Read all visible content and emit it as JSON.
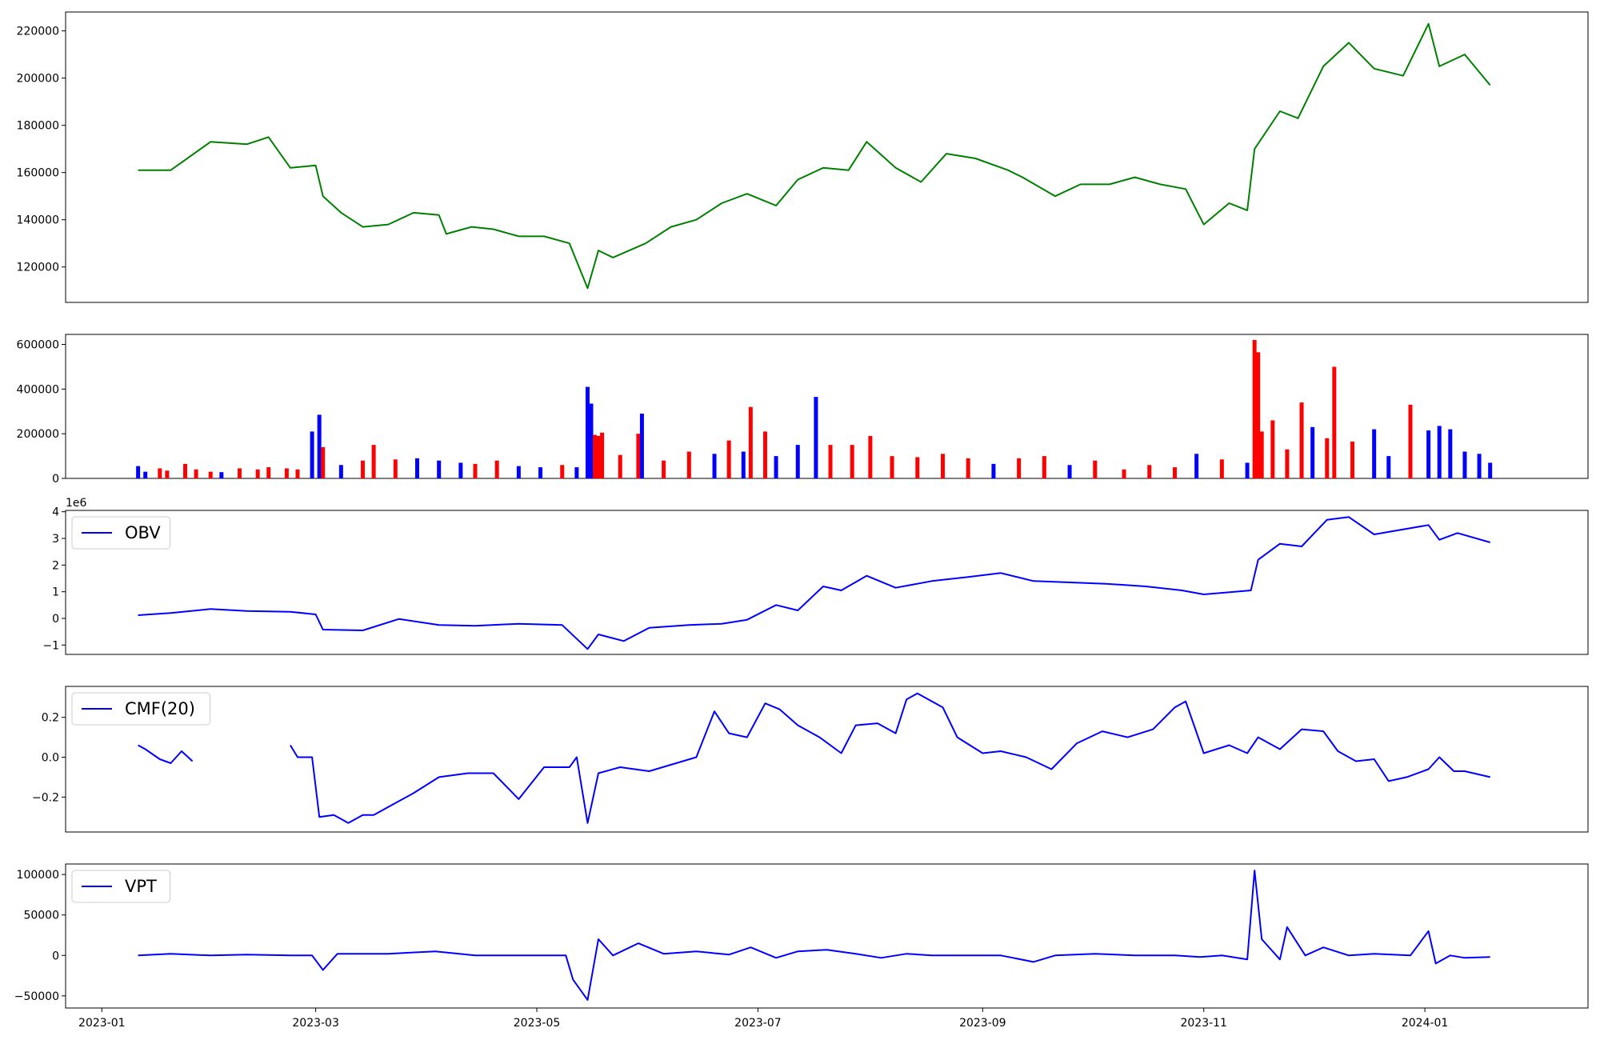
{
  "x_date_ticks": [
    "2023-01",
    "2023-03",
    "2023-05",
    "2023-07",
    "2023-09",
    "2023-11",
    "2024-01"
  ],
  "x_date_range": [
    "2022-12-22",
    "2024-02-15"
  ],
  "data_span": [
    "2023-01-11",
    "2024-01-19"
  ],
  "colors": {
    "price": "#008000",
    "indicator": "#0000ff",
    "vol_up": "#ff0000",
    "vol_down": "#0000ff",
    "axis": "#000000"
  },
  "chart_data": [
    {
      "id": "price",
      "type": "line",
      "ylim": [
        105000,
        228000
      ],
      "yticks": [
        "120000",
        "140000",
        "160000",
        "180000",
        "200000",
        "220000"
      ],
      "ytick_values": [
        120000,
        140000,
        160000,
        180000,
        200000,
        220000
      ],
      "series": [
        {
          "dates": [
            "2023-01-11",
            "2023-01-20",
            "2023-01-31",
            "2023-02-10",
            "2023-02-16",
            "2023-02-22",
            "2023-03-01",
            "2023-03-03",
            "2023-03-08",
            "2023-03-14",
            "2023-03-21",
            "2023-03-28",
            "2023-04-04",
            "2023-04-06",
            "2023-04-13",
            "2023-04-19",
            "2023-04-26",
            "2023-05-03",
            "2023-05-10",
            "2023-05-15",
            "2023-05-18",
            "2023-05-22",
            "2023-05-31",
            "2023-06-07",
            "2023-06-14",
            "2023-06-21",
            "2023-06-28",
            "2023-07-06",
            "2023-07-12",
            "2023-07-19",
            "2023-07-26",
            "2023-07-31",
            "2023-08-08",
            "2023-08-15",
            "2023-08-22",
            "2023-08-30",
            "2023-09-08",
            "2023-09-12",
            "2023-09-21",
            "2023-09-28",
            "2023-10-06",
            "2023-10-13",
            "2023-10-20",
            "2023-10-27",
            "2023-11-01",
            "2023-11-08",
            "2023-11-13",
            "2023-11-15",
            "2023-11-22",
            "2023-11-27",
            "2023-12-04",
            "2023-12-11",
            "2023-12-18",
            "2023-12-26",
            "2024-01-02",
            "2024-01-05",
            "2024-01-12",
            "2024-01-19"
          ],
          "values": [
            161000,
            161000,
            173000,
            172000,
            175000,
            162000,
            163000,
            150000,
            143000,
            137000,
            138000,
            143000,
            142000,
            134000,
            137000,
            136000,
            133000,
            133000,
            130000,
            111000,
            127000,
            124000,
            130000,
            137000,
            140000,
            147000,
            151000,
            146000,
            157000,
            162000,
            161000,
            173000,
            162000,
            156000,
            168000,
            166000,
            161000,
            158000,
            150000,
            155000,
            155000,
            158000,
            155000,
            153000,
            138000,
            147000,
            144000,
            170000,
            186000,
            183000,
            205000,
            215000,
            204000,
            201000,
            223000,
            205000,
            210000,
            197000
          ]
        }
      ]
    },
    {
      "id": "volume",
      "type": "bar",
      "ylim": [
        0,
        645000
      ],
      "yticks": [
        "0",
        "200000",
        "400000",
        "600000"
      ],
      "ytick_values": [
        0,
        200000,
        400000,
        600000
      ],
      "series": [
        {
          "dates": [
            "2023-01-11",
            "2023-01-13",
            "2023-01-17",
            "2023-01-19",
            "2023-01-24",
            "2023-01-27",
            "2023-01-31",
            "2023-02-03",
            "2023-02-08",
            "2023-02-13",
            "2023-02-16",
            "2023-02-21",
            "2023-02-24",
            "2023-02-28",
            "2023-03-02",
            "2023-03-03",
            "2023-03-08",
            "2023-03-14",
            "2023-03-17",
            "2023-03-23",
            "2023-03-29",
            "2023-04-04",
            "2023-04-10",
            "2023-04-14",
            "2023-04-20",
            "2023-04-26",
            "2023-05-02",
            "2023-05-08",
            "2023-05-12",
            "2023-05-15",
            "2023-05-16",
            "2023-05-17",
            "2023-05-18",
            "2023-05-19",
            "2023-05-24",
            "2023-05-29",
            "2023-05-30",
            "2023-06-05",
            "2023-06-12",
            "2023-06-19",
            "2023-06-23",
            "2023-06-27",
            "2023-06-29",
            "2023-07-03",
            "2023-07-06",
            "2023-07-12",
            "2023-07-17",
            "2023-07-21",
            "2023-07-27",
            "2023-08-01",
            "2023-08-07",
            "2023-08-14",
            "2023-08-21",
            "2023-08-28",
            "2023-09-04",
            "2023-09-11",
            "2023-09-18",
            "2023-09-25",
            "2023-10-02",
            "2023-10-10",
            "2023-10-17",
            "2023-10-24",
            "2023-10-30",
            "2023-11-06",
            "2023-11-13",
            "2023-11-15",
            "2023-11-16",
            "2023-11-17",
            "2023-11-20",
            "2023-11-24",
            "2023-11-28",
            "2023-12-01",
            "2023-12-05",
            "2023-12-07",
            "2023-12-12",
            "2023-12-18",
            "2023-12-22",
            "2023-12-28",
            "2024-01-02",
            "2024-01-05",
            "2024-01-08",
            "2024-01-12",
            "2024-01-16",
            "2024-01-19"
          ],
          "values": [
            55000,
            30000,
            45000,
            35000,
            65000,
            40000,
            30000,
            28000,
            45000,
            40000,
            50000,
            45000,
            40000,
            210000,
            285000,
            140000,
            60000,
            80000,
            150000,
            85000,
            90000,
            80000,
            70000,
            65000,
            80000,
            55000,
            50000,
            60000,
            50000,
            410000,
            335000,
            195000,
            190000,
            205000,
            105000,
            200000,
            290000,
            80000,
            120000,
            110000,
            170000,
            120000,
            320000,
            210000,
            100000,
            150000,
            365000,
            150000,
            150000,
            190000,
            100000,
            95000,
            110000,
            90000,
            65000,
            90000,
            100000,
            60000,
            80000,
            40000,
            60000,
            50000,
            110000,
            85000,
            70000,
            620000,
            565000,
            210000,
            260000,
            130000,
            340000,
            230000,
            180000,
            500000,
            165000,
            220000,
            100000,
            330000,
            215000,
            235000,
            220000,
            120000,
            110000,
            70000
          ],
          "up": [
            false,
            false,
            true,
            true,
            true,
            true,
            true,
            false,
            true,
            true,
            true,
            true,
            true,
            false,
            false,
            true,
            false,
            true,
            true,
            true,
            false,
            false,
            false,
            true,
            true,
            false,
            false,
            true,
            false,
            false,
            false,
            true,
            true,
            true,
            true,
            true,
            false,
            true,
            true,
            false,
            true,
            false,
            true,
            true,
            false,
            false,
            false,
            true,
            true,
            true,
            true,
            true,
            true,
            true,
            false,
            true,
            true,
            false,
            true,
            true,
            true,
            true,
            false,
            true,
            false,
            true,
            true,
            true,
            true,
            true,
            true,
            false,
            true,
            true,
            true,
            false,
            false,
            true,
            false,
            false,
            false,
            false,
            false,
            false
          ]
        }
      ]
    },
    {
      "id": "obv",
      "type": "line",
      "legend": "OBV",
      "legend_loc": "upper left",
      "y_offset_label": "1e6",
      "ylim": [
        -1.35,
        4.05
      ],
      "yticks": [
        "−1",
        "0",
        "1",
        "2",
        "3",
        "4"
      ],
      "ytick_values": [
        -1,
        0,
        1,
        2,
        3,
        4
      ],
      "series": [
        {
          "dates": [
            "2023-01-11",
            "2023-01-20",
            "2023-01-31",
            "2023-02-10",
            "2023-02-22",
            "2023-03-01",
            "2023-03-03",
            "2023-03-14",
            "2023-03-24",
            "2023-04-04",
            "2023-04-14",
            "2023-04-26",
            "2023-05-08",
            "2023-05-15",
            "2023-05-18",
            "2023-05-25",
            "2023-06-01",
            "2023-06-12",
            "2023-06-21",
            "2023-06-28",
            "2023-07-06",
            "2023-07-12",
            "2023-07-19",
            "2023-07-24",
            "2023-07-31",
            "2023-08-08",
            "2023-08-18",
            "2023-08-28",
            "2023-09-06",
            "2023-09-15",
            "2023-09-25",
            "2023-10-05",
            "2023-10-16",
            "2023-10-26",
            "2023-11-01",
            "2023-11-14",
            "2023-11-16",
            "2023-11-22",
            "2023-11-28",
            "2023-12-05",
            "2023-12-11",
            "2023-12-18",
            "2024-01-02",
            "2024-01-05",
            "2024-01-10",
            "2024-01-19"
          ],
          "values": [
            0.12,
            0.2,
            0.35,
            0.28,
            0.25,
            0.15,
            -0.42,
            -0.45,
            -0.02,
            -0.25,
            -0.28,
            -0.2,
            -0.25,
            -1.15,
            -0.6,
            -0.85,
            -0.35,
            -0.25,
            -0.2,
            -0.05,
            0.5,
            0.3,
            1.2,
            1.05,
            1.6,
            1.15,
            1.4,
            1.55,
            1.7,
            1.4,
            1.35,
            1.3,
            1.2,
            1.05,
            0.9,
            1.05,
            2.2,
            2.8,
            2.7,
            3.7,
            3.8,
            3.15,
            3.5,
            2.95,
            3.2,
            2.85
          ]
        }
      ]
    },
    {
      "id": "cmf",
      "type": "line",
      "legend": "CMF(20)",
      "legend_loc": "upper left",
      "ylim": [
        -0.375,
        0.355
      ],
      "yticks": [
        "−0.2",
        "0.0",
        "0.2"
      ],
      "ytick_values": [
        -0.2,
        0.0,
        0.2
      ],
      "series": [
        {
          "dates": [
            "2023-01-11",
            "2023-01-13",
            "2023-01-17",
            "2023-01-20",
            "2023-01-23",
            "2023-01-26"
          ],
          "values": [
            0.06,
            0.04,
            -0.01,
            -0.03,
            0.03,
            -0.02
          ]
        },
        {
          "dates": [
            "2023-02-22",
            "2023-02-24",
            "2023-02-28",
            "2023-03-02",
            "2023-03-06",
            "2023-03-10",
            "2023-03-14",
            "2023-03-17",
            "2023-03-21",
            "2023-03-28",
            "2023-04-04",
            "2023-04-12",
            "2023-04-19",
            "2023-04-26",
            "2023-05-03",
            "2023-05-10",
            "2023-05-12",
            "2023-05-15",
            "2023-05-18",
            "2023-05-24",
            "2023-06-01",
            "2023-06-14",
            "2023-06-19",
            "2023-06-23",
            "2023-06-28",
            "2023-07-03",
            "2023-07-07",
            "2023-07-12",
            "2023-07-18",
            "2023-07-24",
            "2023-07-28",
            "2023-08-03",
            "2023-08-08",
            "2023-08-11",
            "2023-08-14",
            "2023-08-21",
            "2023-08-25",
            "2023-09-01",
            "2023-09-06",
            "2023-09-13",
            "2023-09-20",
            "2023-09-27",
            "2023-10-04",
            "2023-10-11",
            "2023-10-18",
            "2023-10-24",
            "2023-10-27",
            "2023-11-01",
            "2023-11-08",
            "2023-11-13",
            "2023-11-16",
            "2023-11-22",
            "2023-11-28",
            "2023-12-04",
            "2023-12-08",
            "2023-12-13",
            "2023-12-18",
            "2023-12-22",
            "2023-12-27",
            "2024-01-02",
            "2024-01-05",
            "2024-01-09",
            "2024-01-12",
            "2024-01-19"
          ],
          "values": [
            0.06,
            0.0,
            0.0,
            -0.3,
            -0.29,
            -0.33,
            -0.29,
            -0.29,
            -0.25,
            -0.18,
            -0.1,
            -0.08,
            -0.08,
            -0.21,
            -0.05,
            -0.05,
            0.0,
            -0.33,
            -0.08,
            -0.05,
            -0.07,
            0.0,
            0.23,
            0.12,
            0.1,
            0.27,
            0.24,
            0.16,
            0.1,
            0.02,
            0.16,
            0.17,
            0.12,
            0.29,
            0.32,
            0.25,
            0.1,
            0.02,
            0.03,
            0.0,
            -0.06,
            0.07,
            0.13,
            0.1,
            0.14,
            0.25,
            0.28,
            0.02,
            0.06,
            0.02,
            0.1,
            0.04,
            0.14,
            0.13,
            0.03,
            -0.02,
            -0.01,
            -0.12,
            -0.1,
            -0.06,
            0.0,
            -0.07,
            -0.07,
            -0.1
          ]
        }
      ]
    },
    {
      "id": "vpt",
      "type": "line",
      "legend": "VPT",
      "legend_loc": "upper left",
      "ylim": [
        -65000,
        113000
      ],
      "yticks": [
        "−50000",
        "0",
        "50000",
        "100000"
      ],
      "ytick_values": [
        -50000,
        0,
        50000,
        100000
      ],
      "series": [
        {
          "dates": [
            "2023-01-11",
            "2023-01-20",
            "2023-01-31",
            "2023-02-10",
            "2023-02-22",
            "2023-02-28",
            "2023-03-03",
            "2023-03-07",
            "2023-03-14",
            "2023-03-21",
            "2023-04-03",
            "2023-04-14",
            "2023-04-26",
            "2023-05-09",
            "2023-05-11",
            "2023-05-15",
            "2023-05-18",
            "2023-05-22",
            "2023-05-29",
            "2023-06-05",
            "2023-06-14",
            "2023-06-23",
            "2023-06-29",
            "2023-07-06",
            "2023-07-12",
            "2023-07-20",
            "2023-07-28",
            "2023-08-04",
            "2023-08-11",
            "2023-08-18",
            "2023-08-28",
            "2023-09-06",
            "2023-09-15",
            "2023-09-21",
            "2023-10-02",
            "2023-10-13",
            "2023-10-24",
            "2023-10-31",
            "2023-11-06",
            "2023-11-13",
            "2023-11-15",
            "2023-11-17",
            "2023-11-22",
            "2023-11-24",
            "2023-11-29",
            "2023-12-04",
            "2023-12-11",
            "2023-12-18",
            "2023-12-28",
            "2024-01-02",
            "2024-01-04",
            "2024-01-08",
            "2024-01-12",
            "2024-01-19"
          ],
          "values": [
            0,
            2000,
            0,
            1000,
            0,
            0,
            -18000,
            2000,
            2000,
            2000,
            5000,
            0,
            0,
            0,
            -30000,
            -55000,
            20000,
            0,
            15000,
            2000,
            5000,
            1000,
            10000,
            -3000,
            5000,
            7000,
            2000,
            -3000,
            2000,
            0,
            0,
            0,
            -8000,
            0,
            2000,
            0,
            0,
            -2000,
            0,
            -5000,
            105000,
            20000,
            -5000,
            35000,
            0,
            10000,
            0,
            2000,
            0,
            30000,
            -10000,
            0,
            -3000,
            -2000
          ]
        }
      ]
    }
  ]
}
